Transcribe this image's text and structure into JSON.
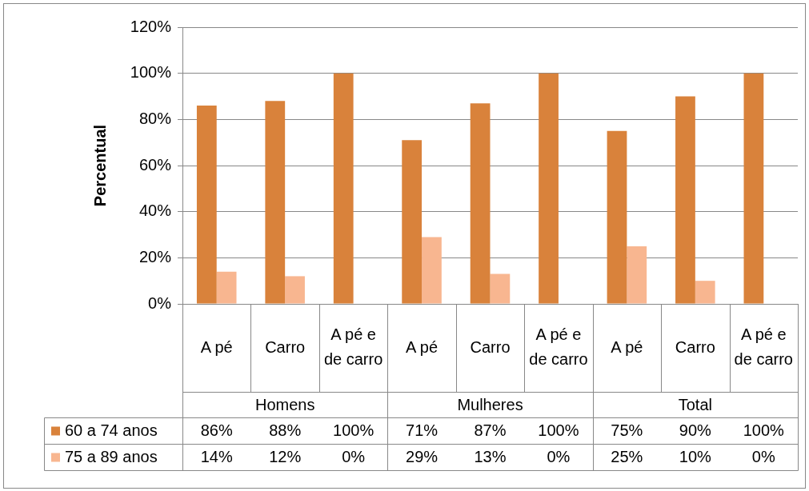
{
  "chart_data": {
    "type": "bar",
    "ylabel": "Percentual",
    "categories": [
      "A pé",
      "Carro",
      "A pé e de carro",
      "A pé",
      "Carro",
      "A pé e de carro",
      "A pé",
      "Carro",
      "A pé e de carro"
    ],
    "annotations": [
      "Homens",
      "Mulheres",
      "Total"
    ],
    "series": [
      {
        "name": "60 a 74 anos",
        "color": "#d9823b",
        "values": [
          86,
          88,
          100,
          71,
          87,
          100,
          75,
          90,
          100
        ],
        "value_labels": [
          "86%",
          "88%",
          "100%",
          "71%",
          "87%",
          "100%",
          "75%",
          "90%",
          "100%"
        ]
      },
      {
        "name": "75 a 89 anos",
        "color": "#f8b690",
        "values": [
          14,
          12,
          0,
          29,
          13,
          0,
          25,
          10,
          0
        ],
        "value_labels": [
          "14%",
          "12%",
          "0%",
          "29%",
          "13%",
          "0%",
          "25%",
          "10%",
          "0%"
        ]
      }
    ],
    "ylim": [
      0,
      120
    ],
    "yticks": [
      {
        "value": 0,
        "label": "0%"
      },
      {
        "value": 20,
        "label": "20%"
      },
      {
        "value": 40,
        "label": "40%"
      },
      {
        "value": 60,
        "label": "60%"
      },
      {
        "value": 80,
        "label": "80%"
      },
      {
        "value": 100,
        "label": "100%"
      },
      {
        "value": 120,
        "label": "120%"
      }
    ],
    "grid": "y",
    "legend": "bottom"
  }
}
